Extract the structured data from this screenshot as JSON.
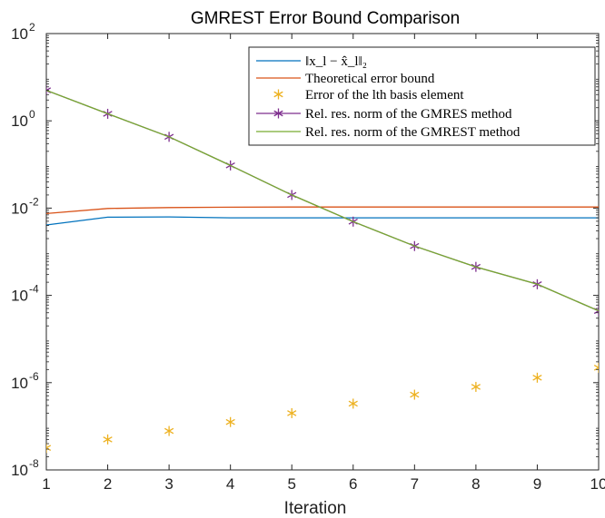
{
  "chart_data": {
    "type": "line",
    "title": "GMREST Error Bound Comparison",
    "xlabel": "Iteration",
    "ylabel": "",
    "x": [
      1,
      2,
      3,
      4,
      5,
      6,
      7,
      8,
      9,
      10
    ],
    "xlim": [
      1,
      10
    ],
    "ylim": [
      1e-08,
      100
    ],
    "yscale": "log",
    "x_tick_labels": [
      "1",
      "2",
      "3",
      "4",
      "5",
      "6",
      "7",
      "8",
      "9",
      "10"
    ],
    "y_ticks": [
      {
        "value": 1e-08,
        "base": "10",
        "exp": "-8"
      },
      {
        "value": 1e-06,
        "base": "10",
        "exp": "-6"
      },
      {
        "value": 0.0001,
        "base": "10",
        "exp": "-4"
      },
      {
        "value": 0.01,
        "base": "10",
        "exp": "-2"
      },
      {
        "value": 1,
        "base": "10",
        "exp": "0"
      },
      {
        "value": 100,
        "base": "10",
        "exp": "2"
      }
    ],
    "grid": false,
    "legend_position": "top-right",
    "series": [
      {
        "name": "‖x_l − x̂_l‖₂",
        "color": "#0072BD",
        "style": "line",
        "values": [
          0.0041,
          0.0062,
          0.0063,
          0.006,
          0.006,
          0.006,
          0.006,
          0.006,
          0.006,
          0.006
        ]
      },
      {
        "name": "Theoretical error bound",
        "color": "#D95319",
        "style": "line",
        "values": [
          0.0075,
          0.0098,
          0.0103,
          0.0105,
          0.0106,
          0.0106,
          0.0106,
          0.0106,
          0.0106,
          0.0106
        ]
      },
      {
        "name": "Error of the lth basis element",
        "color": "#EDB120",
        "style": "marker",
        "values": [
          3.2e-08,
          5e-08,
          7.8e-08,
          1.25e-07,
          2e-07,
          3.3e-07,
          5.3e-07,
          8e-07,
          1.3e-06,
          2.2e-06
        ]
      },
      {
        "name": "Rel. res. norm of the GMRES method",
        "color": "#7E2F8E",
        "style": "line+marker",
        "values": [
          5.0,
          1.45,
          0.43,
          0.095,
          0.02,
          0.0049,
          0.00135,
          0.00045,
          0.00018,
          4.4e-05
        ]
      },
      {
        "name": "Rel. res. norm of the GMREST method",
        "color": "#77AC30",
        "style": "line",
        "values": [
          5.0,
          1.45,
          0.43,
          0.095,
          0.02,
          0.0049,
          0.00135,
          0.00045,
          0.00018,
          4.4e-05
        ]
      }
    ]
  }
}
